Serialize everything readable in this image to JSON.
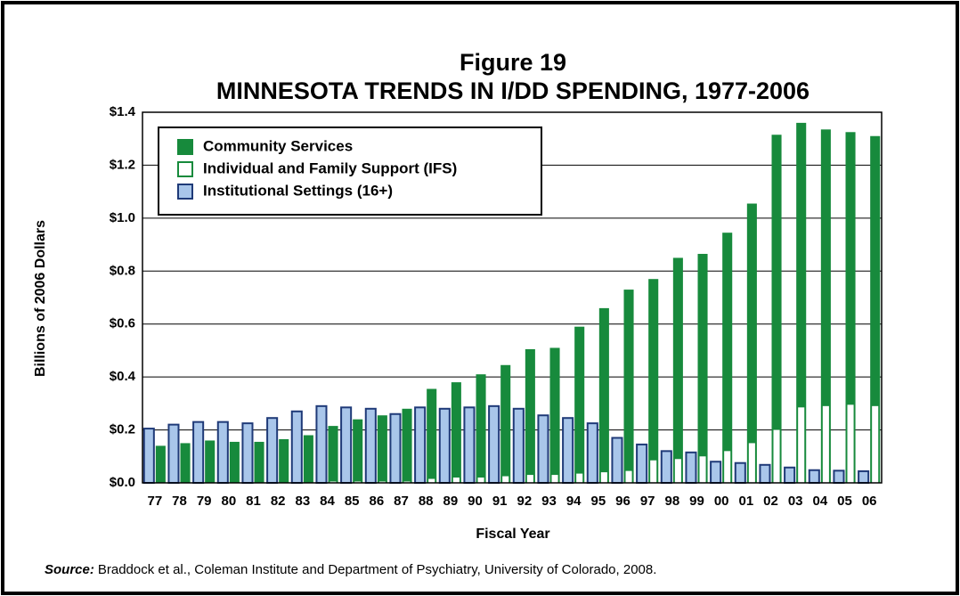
{
  "chart_data": {
    "type": "bar",
    "title_line1": "Figure 19",
    "title": "MINNESOTA TRENDS IN I/DD SPENDING, 1977-2006",
    "y_label": "Billions of 2006 Dollars",
    "x_label": "Fiscal Year",
    "source_label": "Source:",
    "source_text": "Braddock et al., Coleman Institute and Department of Psychiatry, University of Colorado, 2008.",
    "categories": [
      "77",
      "78",
      "79",
      "80",
      "81",
      "82",
      "83",
      "84",
      "85",
      "86",
      "87",
      "88",
      "89",
      "90",
      "91",
      "92",
      "93",
      "94",
      "95",
      "96",
      "97",
      "98",
      "99",
      "00",
      "01",
      "02",
      "03",
      "04",
      "05",
      "06"
    ],
    "series": [
      {
        "name": "Community Services",
        "color": "#178a3c",
        "values": [
          0.14,
          0.15,
          0.16,
          0.155,
          0.155,
          0.165,
          0.18,
          0.215,
          0.24,
          0.255,
          0.28,
          0.355,
          0.38,
          0.41,
          0.445,
          0.505,
          0.51,
          0.59,
          0.66,
          0.73,
          0.77,
          0.85,
          0.865,
          0.945,
          1.055,
          1.315,
          1.36,
          1.335,
          1.325,
          1.31
        ]
      },
      {
        "name": "Individual and Family Support (IFS)",
        "color": "#ffffff",
        "values": [
          0,
          0,
          0,
          0,
          0,
          0,
          0,
          0.005,
          0.005,
          0.005,
          0.005,
          0.015,
          0.02,
          0.02,
          0.025,
          0.03,
          0.03,
          0.035,
          0.04,
          0.045,
          0.085,
          0.09,
          0.1,
          0.12,
          0.15,
          0.2,
          0.285,
          0.29,
          0.295,
          0.29
        ]
      },
      {
        "name": "Institutional Settings (16+)",
        "color": "#a9c6ea",
        "values": [
          0.205,
          0.22,
          0.23,
          0.23,
          0.225,
          0.245,
          0.27,
          0.29,
          0.285,
          0.28,
          0.26,
          0.285,
          0.28,
          0.285,
          0.29,
          0.28,
          0.255,
          0.245,
          0.225,
          0.17,
          0.145,
          0.12,
          0.115,
          0.08,
          0.075,
          0.068,
          0.058,
          0.048,
          0.046,
          0.044
        ]
      }
    ],
    "ylim": [
      0,
      1.4
    ],
    "yticks": [
      {
        "value": 0,
        "label": "$0.0"
      },
      {
        "value": 0.2,
        "label": "$0.2"
      },
      {
        "value": 0.4,
        "label": "$0.4"
      },
      {
        "value": 0.6,
        "label": "$0.6"
      },
      {
        "value": 0.8,
        "label": "$0.8"
      },
      {
        "value": 1.0,
        "label": "$1.0"
      },
      {
        "value": 1.2,
        "label": "$1.2"
      },
      {
        "value": 1.4,
        "label": "$1.4"
      }
    ],
    "grid": true,
    "legend": "upper left"
  }
}
